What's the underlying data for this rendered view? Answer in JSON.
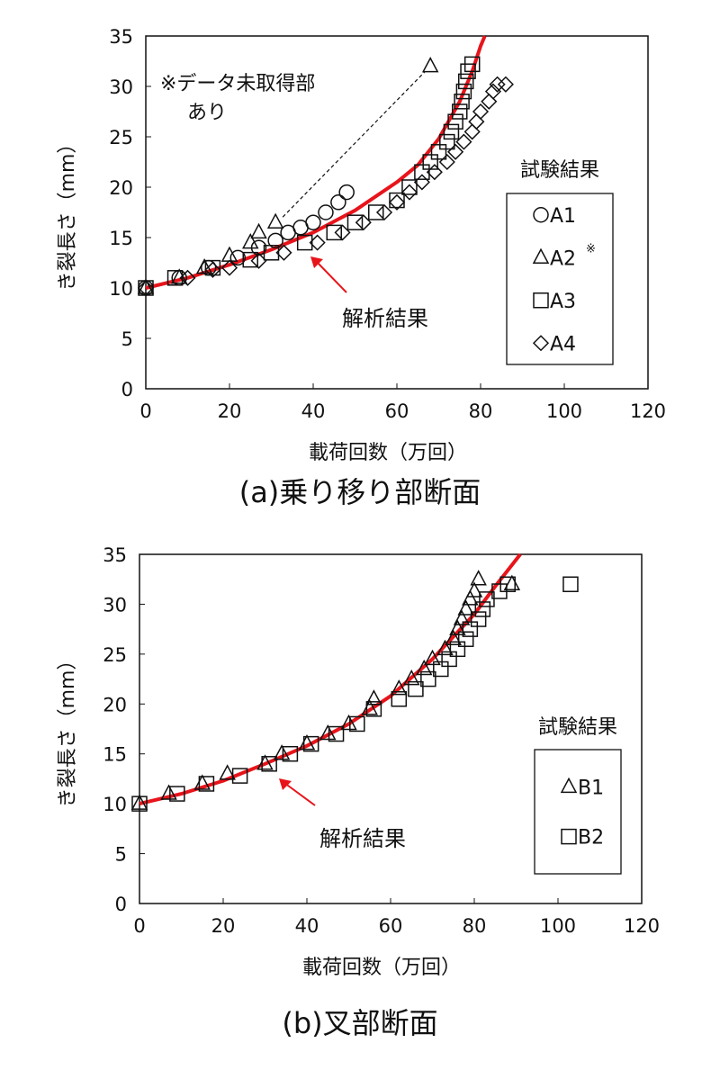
{
  "chart_data": [
    {
      "type": "scatter",
      "title": "(a)乗り移り部断面",
      "xlabel": "載荷回数（万回）",
      "ylabel": "き裂長さ（mm）",
      "xlim": [
        0,
        120
      ],
      "ylim": [
        0,
        35
      ],
      "xticks": [
        "0",
        "20",
        "40",
        "60",
        "80",
        "100",
        "120"
      ],
      "yticks": [
        "0",
        "5",
        "10",
        "15",
        "20",
        "25",
        "30",
        "35"
      ],
      "legend_title": "試験結果",
      "legend_placement": "right",
      "annotation": [
        "※データ未取得部",
        "あり"
      ],
      "analysis_label": "解析結果",
      "analysis_color": "#e8141b",
      "analysis_curve": [
        [
          0,
          10
        ],
        [
          10,
          11
        ],
        [
          20,
          12.3
        ],
        [
          30,
          13.8
        ],
        [
          40,
          15.5
        ],
        [
          50,
          17.7
        ],
        [
          60,
          20.5
        ],
        [
          65,
          22.2
        ],
        [
          70,
          24.8
        ],
        [
          75,
          28.5
        ],
        [
          78,
          31.5
        ],
        [
          80,
          34
        ],
        [
          81,
          35
        ]
      ],
      "series": [
        {
          "name": "A1",
          "marker": "circle",
          "points": [
            [
              0,
              10
            ],
            [
              8,
              11
            ],
            [
              15,
              12
            ],
            [
              22,
              13
            ],
            [
              27,
              14
            ],
            [
              31,
              14.7
            ],
            [
              34,
              15.5
            ],
            [
              37,
              16
            ],
            [
              40,
              16.5
            ],
            [
              43,
              17.5
            ],
            [
              46,
              18.5
            ],
            [
              48,
              19.5
            ]
          ]
        },
        {
          "name": "A2",
          "note": "※",
          "marker": "triangle",
          "points": [
            [
              0,
              10
            ],
            [
              8,
              11
            ],
            [
              14,
              12
            ],
            [
              20,
              13.2
            ],
            [
              25,
              14.5
            ],
            [
              27,
              15.5
            ],
            [
              31,
              16.5
            ],
            [
              68,
              32
            ]
          ],
          "dashed_gap": [
            [
              31,
              16.5
            ],
            [
              68,
              32
            ]
          ]
        },
        {
          "name": "A3",
          "marker": "square",
          "points": [
            [
              0,
              10
            ],
            [
              7,
              11
            ],
            [
              16,
              12
            ],
            [
              25,
              12.8
            ],
            [
              30,
              13.5
            ],
            [
              38,
              14.5
            ],
            [
              45,
              15.5
            ],
            [
              50,
              16.5
            ],
            [
              55,
              17.5
            ],
            [
              60,
              18.7
            ],
            [
              63,
              20
            ],
            [
              66,
              21.5
            ],
            [
              68,
              22.5
            ],
            [
              70,
              23.5
            ],
            [
              72,
              24.5
            ],
            [
              73,
              25.5
            ],
            [
              74,
              26.5
            ],
            [
              75,
              27.5
            ],
            [
              75.5,
              28.5
            ],
            [
              76,
              29.5
            ],
            [
              76.5,
              30.5
            ],
            [
              77,
              31.5
            ],
            [
              78,
              32.2
            ]
          ]
        },
        {
          "name": "A4",
          "marker": "diamond",
          "points": [
            [
              0,
              10
            ],
            [
              10,
              11
            ],
            [
              16,
              11.8
            ],
            [
              20,
              12
            ],
            [
              27,
              12.7
            ],
            [
              33,
              13.5
            ],
            [
              41,
              14.5
            ],
            [
              47,
              15.5
            ],
            [
              52,
              16.5
            ],
            [
              57,
              17.5
            ],
            [
              60,
              18.5
            ],
            [
              63,
              19.5
            ],
            [
              66,
              20.5
            ],
            [
              69,
              21.5
            ],
            [
              72,
              22.5
            ],
            [
              74,
              23.5
            ],
            [
              76,
              24.5
            ],
            [
              78,
              25.5
            ],
            [
              79,
              26.5
            ],
            [
              80,
              27.5
            ],
            [
              82,
              28.5
            ],
            [
              83,
              29.5
            ],
            [
              84,
              30.2
            ],
            [
              86,
              30.2
            ]
          ]
        }
      ]
    },
    {
      "type": "scatter",
      "title": "(b)叉部断面",
      "xlabel": "載荷回数（万回）",
      "ylabel": "き裂長さ（mm）",
      "xlim": [
        0,
        120
      ],
      "ylim": [
        0,
        35
      ],
      "xticks": [
        "0",
        "20",
        "40",
        "60",
        "80",
        "100",
        "120"
      ],
      "yticks": [
        "0",
        "5",
        "10",
        "15",
        "20",
        "25",
        "30",
        "35"
      ],
      "legend_title": "試験結果",
      "legend_placement": "right",
      "analysis_label": "解析結果",
      "analysis_color": "#e8141b",
      "analysis_curve": [
        [
          0,
          10
        ],
        [
          10,
          11
        ],
        [
          20,
          12.3
        ],
        [
          30,
          14
        ],
        [
          40,
          15.8
        ],
        [
          50,
          18
        ],
        [
          60,
          20.8
        ],
        [
          70,
          24.5
        ],
        [
          80,
          29
        ],
        [
          85,
          31.8
        ],
        [
          91,
          35
        ]
      ],
      "series": [
        {
          "name": "B1",
          "marker": "triangle",
          "points": [
            [
              0,
              10
            ],
            [
              7,
              11
            ],
            [
              15,
              12
            ],
            [
              21,
              13
            ],
            [
              30,
              14
            ],
            [
              34,
              15
            ],
            [
              40,
              16
            ],
            [
              45,
              17
            ],
            [
              50,
              18
            ],
            [
              55,
              19.5
            ],
            [
              56,
              20.5
            ],
            [
              62,
              21.5
            ],
            [
              65,
              22.5
            ],
            [
              68,
              23.5
            ],
            [
              70,
              24.5
            ],
            [
              73,
              25.5
            ],
            [
              75,
              26.5
            ],
            [
              76,
              27.5
            ],
            [
              77,
              28.5
            ],
            [
              78,
              29.5
            ],
            [
              79,
              30.5
            ],
            [
              80,
              31.3
            ],
            [
              81,
              32.5
            ],
            [
              89,
              32
            ]
          ]
        },
        {
          "name": "B2",
          "marker": "square",
          "points": [
            [
              0,
              10
            ],
            [
              9,
              11
            ],
            [
              16,
              12
            ],
            [
              24,
              12.8
            ],
            [
              31,
              14
            ],
            [
              36,
              15
            ],
            [
              41,
              16
            ],
            [
              47,
              17
            ],
            [
              52,
              18
            ],
            [
              56,
              19.5
            ],
            [
              62,
              20.5
            ],
            [
              66,
              21.5
            ],
            [
              69,
              22.5
            ],
            [
              72,
              23.5
            ],
            [
              74,
              24.5
            ],
            [
              76,
              25.5
            ],
            [
              78,
              26.5
            ],
            [
              79,
              27.5
            ],
            [
              81,
              28.5
            ],
            [
              82,
              29.5
            ],
            [
              83,
              30.5
            ],
            [
              86,
              31.3
            ],
            [
              88,
              32
            ],
            [
              103,
              32
            ]
          ]
        }
      ]
    }
  ]
}
